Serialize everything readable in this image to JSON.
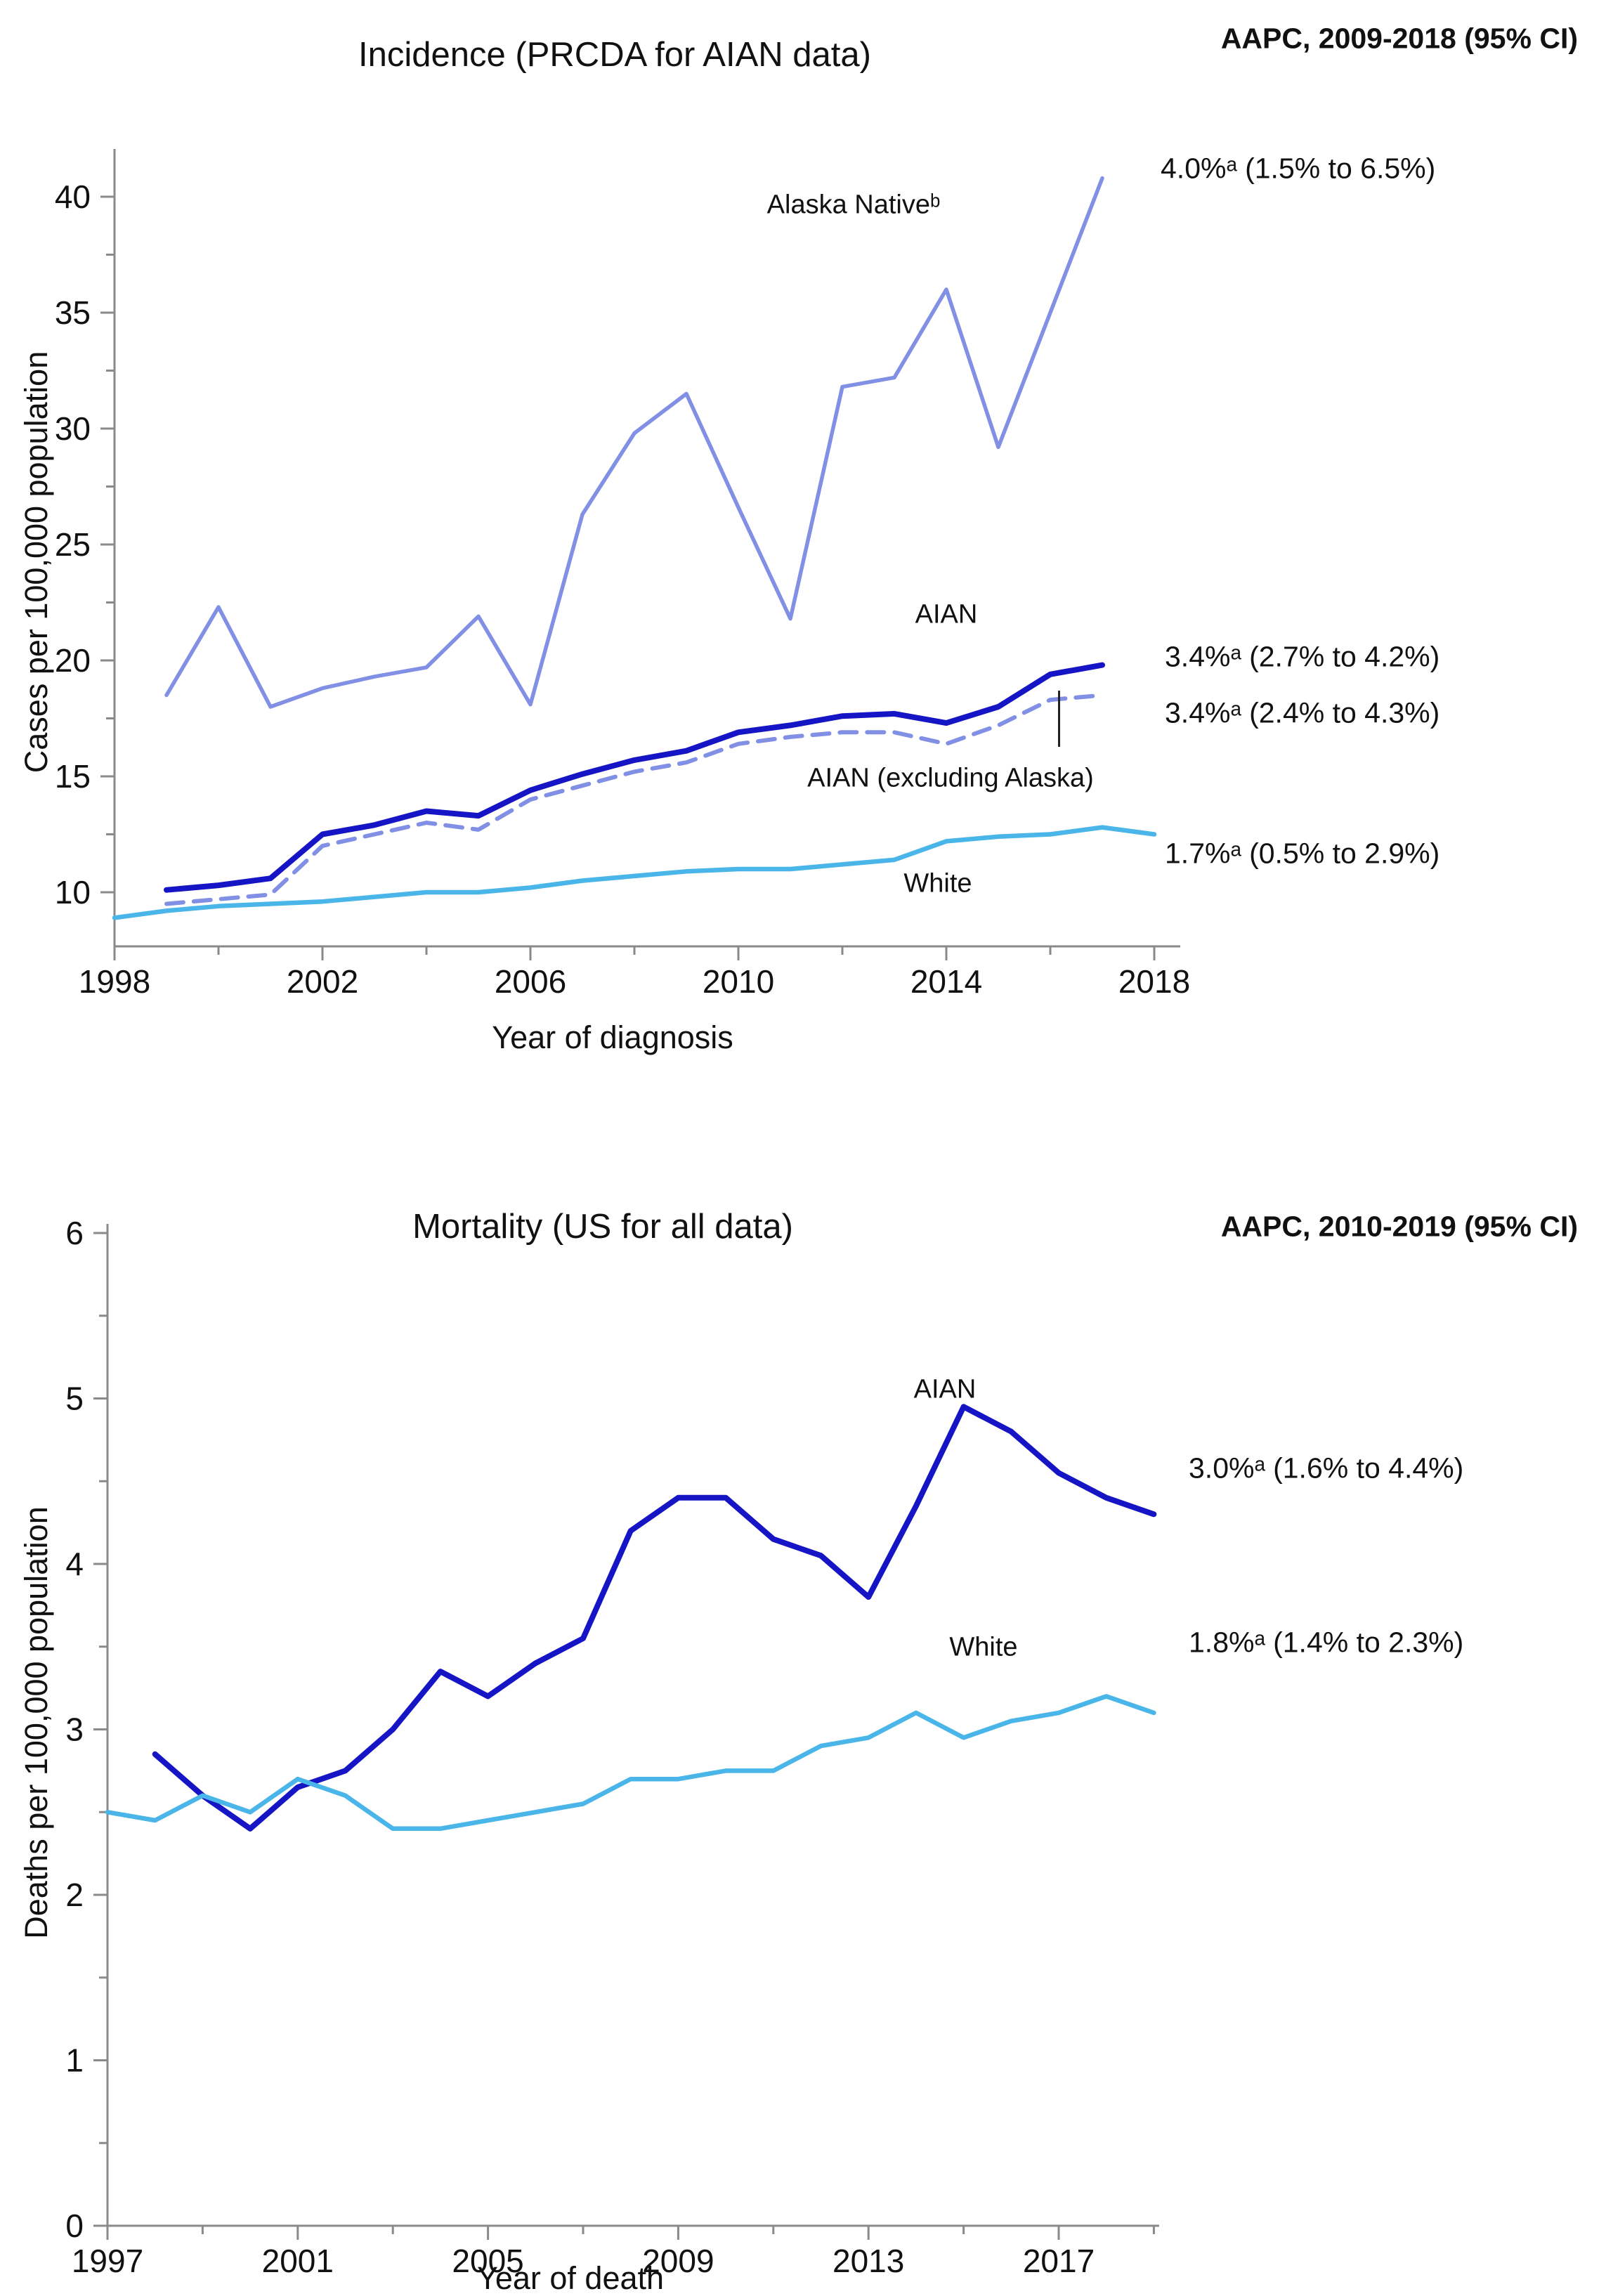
{
  "chart_data": [
    {
      "type": "line",
      "title": "Incidence (PRCDA for AIAN data)",
      "aapc_header": "AAPC, 2009-2018 (95% CI)",
      "xlabel": "Year of diagnosis",
      "ylabel": "Cases per 100,000 population",
      "xlim": [
        1998,
        2018.5
      ],
      "ylim": [
        7.7,
        42
      ],
      "grid": false,
      "x_major_ticks": [
        1998,
        2002,
        2006,
        2010,
        2014,
        2018
      ],
      "x_minor_ticks": [
        2000,
        2004,
        2008,
        2012,
        2016
      ],
      "y_major_ticks": [
        10,
        15,
        20,
        25,
        30,
        35,
        40
      ],
      "y_minor_ticks": [
        12.5,
        17.5,
        22.5,
        27.5,
        32.5,
        37.5
      ],
      "series": [
        {
          "name": "Alaska Native",
          "label": "Alaska Nativeᵇ",
          "aapc": "4.0%ᵃ (1.5% to 6.5%)",
          "color": "#8190e4",
          "style": "solid",
          "width": 5.5,
          "years": [
            1999,
            2000,
            2001,
            2002,
            2003,
            2004,
            2005,
            2006,
            2007,
            2008,
            2009,
            2010,
            2011,
            2012,
            2013,
            2014,
            2015,
            2016,
            2017
          ],
          "values": [
            18.5,
            22.3,
            18.0,
            18.8,
            19.3,
            19.7,
            21.9,
            18.1,
            26.3,
            29.8,
            31.5,
            26.6,
            21.8,
            31.8,
            32.2,
            36.0,
            29.2,
            35.0,
            40.8
          ]
        },
        {
          "name": "AIAN",
          "label": "AIAN",
          "aapc": "3.4%ᵃ (2.7% to 4.2%)",
          "color": "#1515c6",
          "style": "solid",
          "width": 8,
          "years": [
            1999,
            2000,
            2001,
            2002,
            2003,
            2004,
            2005,
            2006,
            2007,
            2008,
            2009,
            2010,
            2011,
            2012,
            2013,
            2014,
            2015,
            2016,
            2017
          ],
          "values": [
            10.1,
            10.3,
            10.6,
            12.5,
            12.9,
            13.5,
            13.3,
            14.4,
            15.1,
            15.7,
            16.1,
            16.9,
            17.2,
            17.6,
            17.7,
            17.3,
            18.0,
            19.4,
            19.8
          ]
        },
        {
          "name": "AIAN (excluding Alaska)",
          "label": "AIAN (excluding Alaska)",
          "aapc": "3.4%ᵃ (2.4% to 4.3%)",
          "color": "#8190e4",
          "style": "dashed",
          "width": 6,
          "years": [
            1999,
            2000,
            2001,
            2002,
            2003,
            2004,
            2005,
            2006,
            2007,
            2008,
            2009,
            2010,
            2011,
            2012,
            2013,
            2014,
            2015,
            2016,
            2017
          ],
          "values": [
            9.5,
            9.7,
            9.9,
            12.0,
            12.5,
            13.0,
            12.7,
            14.0,
            14.6,
            15.2,
            15.6,
            16.4,
            16.7,
            16.9,
            16.9,
            16.4,
            17.2,
            18.3,
            18.5
          ]
        },
        {
          "name": "White",
          "label": "White",
          "aapc": "1.7%ᵃ (0.5% to 2.9%)",
          "color": "#4ab5e8",
          "style": "solid",
          "width": 6.5,
          "years": [
            1998,
            1999,
            2000,
            2001,
            2002,
            2003,
            2004,
            2005,
            2006,
            2007,
            2008,
            2009,
            2010,
            2011,
            2012,
            2013,
            2014,
            2015,
            2016,
            2017,
            2018
          ],
          "values": [
            8.9,
            9.2,
            9.4,
            9.5,
            9.6,
            9.8,
            10.0,
            10.0,
            10.2,
            10.5,
            10.7,
            10.9,
            11.0,
            11.0,
            11.2,
            11.4,
            12.2,
            12.4,
            12.5,
            12.8,
            12.5
          ]
        }
      ]
    },
    {
      "type": "line",
      "title": "Mortality (US for all data)",
      "aapc_header": "AAPC, 2010-2019 (95% CI)",
      "xlabel": "Year of death",
      "ylabel": "Deaths per 100,000 population",
      "xlim": [
        1997,
        2019.3
      ],
      "ylim": [
        0,
        6
      ],
      "grid": false,
      "x_major_ticks": [
        1997,
        2001,
        2005,
        2009,
        2013,
        2017
      ],
      "x_minor_ticks": [
        1999,
        2003,
        2007,
        2011,
        2015,
        2019
      ],
      "y_major_ticks": [
        0,
        1,
        2,
        3,
        4,
        5,
        6
      ],
      "y_minor_ticks": [
        0.5,
        1.5,
        2.5,
        3.5,
        4.5,
        5.5
      ],
      "series": [
        {
          "name": "AIAN",
          "label": "AIAN",
          "aapc": "3.0%ᵃ (1.6% to 4.4%)",
          "color": "#1515c6",
          "style": "solid",
          "width": 8,
          "years": [
            1998,
            1999,
            2000,
            2001,
            2002,
            2003,
            2004,
            2005,
            2006,
            2007,
            2008,
            2009,
            2010,
            2011,
            2012,
            2013,
            2014,
            2015,
            2016,
            2017,
            2018,
            2019
          ],
          "values": [
            2.85,
            2.6,
            2.4,
            2.65,
            2.75,
            3.0,
            3.35,
            3.2,
            3.4,
            3.55,
            4.2,
            4.4,
            4.4,
            4.15,
            4.05,
            3.8,
            4.35,
            4.95,
            4.8,
            4.55,
            4.4,
            4.3
          ]
        },
        {
          "name": "White",
          "label": "White",
          "aapc": "1.8%ᵃ (1.4% to 2.3%)",
          "color": "#4ab5e8",
          "style": "solid",
          "width": 6.5,
          "years": [
            1997,
            1998,
            1999,
            2000,
            2001,
            2002,
            2003,
            2004,
            2005,
            2006,
            2007,
            2008,
            2009,
            2010,
            2011,
            2012,
            2013,
            2014,
            2015,
            2016,
            2017,
            2018,
            2019
          ],
          "values": [
            2.5,
            2.45,
            2.6,
            2.5,
            2.7,
            2.6,
            2.4,
            2.4,
            2.45,
            2.5,
            2.55,
            2.7,
            2.7,
            2.75,
            2.75,
            2.9,
            2.95,
            3.1,
            2.95,
            3.05,
            3.1,
            3.2,
            3.1
          ]
        }
      ]
    }
  ]
}
